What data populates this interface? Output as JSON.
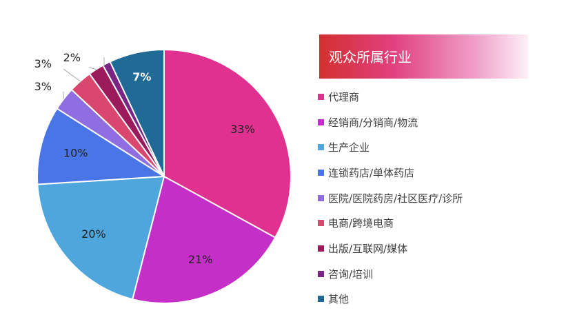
{
  "legend_title": "观众所属行业",
  "chart_data": {
    "type": "pie",
    "slices": [
      {
        "label": "代理商",
        "value": 33,
        "display": "33%",
        "color": "#e03191"
      },
      {
        "label": "经销商/分销商/物流",
        "value": 21,
        "display": "21%",
        "color": "#c42fc8"
      },
      {
        "label": "生产企业",
        "value": 20,
        "display": "20%",
        "color": "#4ea6dc"
      },
      {
        "label": "连锁药店/单体药店",
        "value": 10,
        "display": "10%",
        "color": "#4a75e6"
      },
      {
        "label": "医院/医院药房/社区医疗/诊所",
        "value": 3,
        "display": "3%",
        "color": "#8e6ee0"
      },
      {
        "label": "电商/跨境电商",
        "value": 3,
        "display": "3%",
        "color": "#d9476e"
      },
      {
        "label": "出版/互联网/媒体",
        "value": 2,
        "display": "2%",
        "color": "#9a1a5a"
      },
      {
        "label": "咨询/培训",
        "value": 1,
        "display": "",
        "color": "#7a2584"
      },
      {
        "label": "其他",
        "value": 7,
        "display": "7%",
        "color": "#1f6b96"
      }
    ],
    "start_angle_deg": 0,
    "direction": "clockwise",
    "legend_position": "right"
  }
}
